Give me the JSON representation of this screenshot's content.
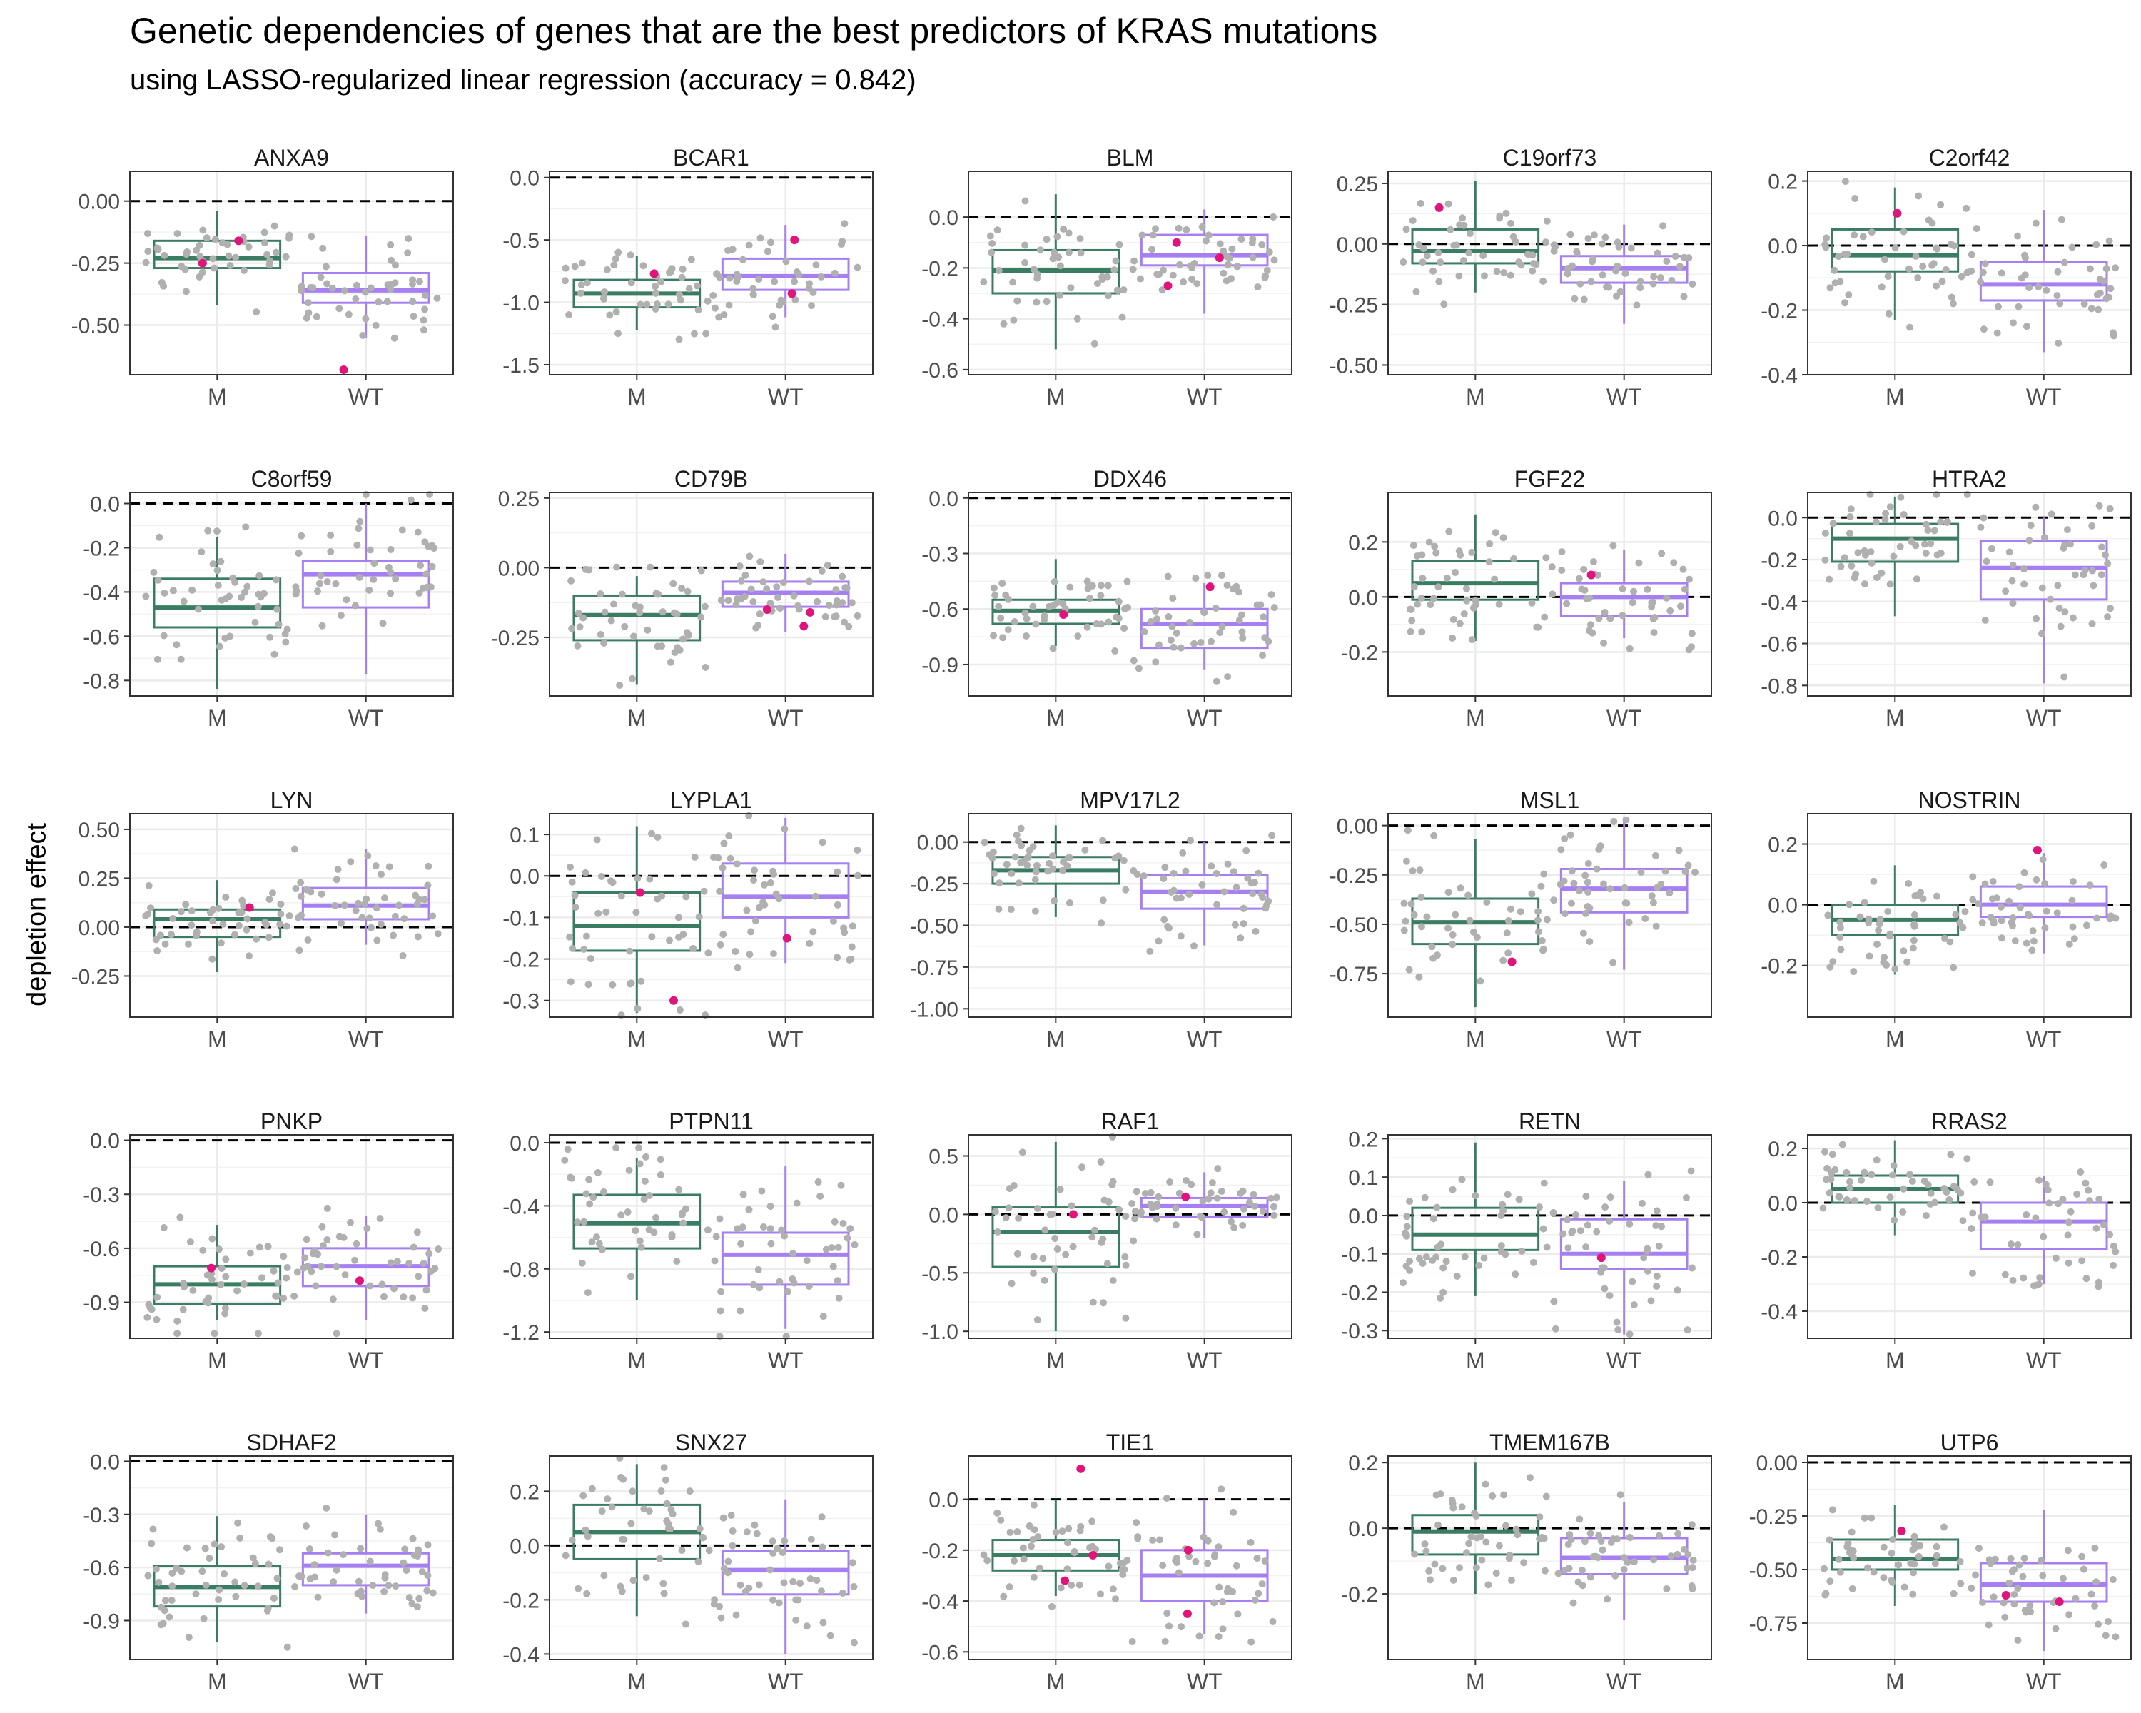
{
  "title": "Genetic dependencies of genes that are the best predictors of KRAS mutations",
  "subtitle": "using LASSO-regularized linear regression (accuracy = 0.842)",
  "ylabel": "depletion effect",
  "colors": {
    "M": "#3a7d63",
    "WT": "#a67ff2",
    "point": "#b0b0b0",
    "highlight": "#e0147a"
  },
  "chart_data": {
    "type": "boxplot",
    "categories": [
      "M",
      "WT"
    ],
    "reference_line": 0,
    "grid": true,
    "panels": [
      {
        "gene": "ANXA9",
        "ylim": [
          -0.7,
          0.12
        ],
        "ticks": [
          0.0,
          -0.25,
          -0.5
        ],
        "tick_labels": [
          "0.00",
          "-0.25",
          "-0.50"
        ],
        "M": {
          "min": -0.42,
          "q1": -0.27,
          "median": -0.23,
          "q3": -0.16,
          "max": -0.04
        },
        "WT": {
          "min": -0.55,
          "q1": -0.41,
          "median": -0.36,
          "q3": -0.29,
          "max": -0.14
        },
        "highlights": [
          {
            "group": "M",
            "y": -0.25
          },
          {
            "group": "M",
            "y": -0.16
          },
          {
            "group": "WT",
            "y": -0.68
          }
        ]
      },
      {
        "gene": "BCAR1",
        "ylim": [
          -1.58,
          0.05
        ],
        "ticks": [
          0.0,
          -0.5,
          -1.0,
          -1.5
        ],
        "tick_labels": [
          "0.0",
          "-0.5",
          "-1.0",
          "-1.5"
        ],
        "M": {
          "min": -1.22,
          "q1": -1.04,
          "median": -0.93,
          "q3": -0.82,
          "max": -0.63
        },
        "WT": {
          "min": -1.12,
          "q1": -0.9,
          "median": -0.79,
          "q3": -0.65,
          "max": -0.38
        },
        "highlights": [
          {
            "group": "M",
            "y": -0.77
          },
          {
            "group": "WT",
            "y": -0.5
          },
          {
            "group": "WT",
            "y": -0.93
          }
        ]
      },
      {
        "gene": "BLM",
        "ylim": [
          -0.62,
          0.18
        ],
        "ticks": [
          0.0,
          -0.2,
          -0.4,
          -0.6
        ],
        "tick_labels": [
          "0.0",
          "-0.2",
          "-0.4",
          "-0.6"
        ],
        "M": {
          "min": -0.52,
          "q1": -0.3,
          "median": -0.21,
          "q3": -0.13,
          "max": 0.09
        },
        "WT": {
          "min": -0.38,
          "q1": -0.19,
          "median": -0.15,
          "q3": -0.07,
          "max": 0.03
        },
        "highlights": [
          {
            "group": "WT",
            "y": -0.16
          },
          {
            "group": "WT",
            "y": -0.27
          },
          {
            "group": "WT",
            "y": -0.1
          }
        ]
      },
      {
        "gene": "C19orf73",
        "ylim": [
          -0.54,
          0.3
        ],
        "ticks": [
          0.25,
          0.0,
          -0.25,
          -0.5
        ],
        "tick_labels": [
          "0.25",
          "0.00",
          "-0.25",
          "-0.50"
        ],
        "M": {
          "min": -0.2,
          "q1": -0.08,
          "median": -0.03,
          "q3": 0.06,
          "max": 0.26
        },
        "WT": {
          "min": -0.33,
          "q1": -0.16,
          "median": -0.1,
          "q3": -0.05,
          "max": 0.08
        },
        "highlights": [
          {
            "group": "M",
            "y": 0.15
          }
        ]
      },
      {
        "gene": "C2orf42",
        "ylim": [
          -0.4,
          0.23
        ],
        "ticks": [
          0.2,
          0.0,
          -0.2,
          -0.4
        ],
        "tick_labels": [
          "0.2",
          "0.0",
          "-0.2",
          "-0.4"
        ],
        "M": {
          "min": -0.23,
          "q1": -0.08,
          "median": -0.03,
          "q3": 0.05,
          "max": 0.18
        },
        "WT": {
          "min": -0.33,
          "q1": -0.17,
          "median": -0.12,
          "q3": -0.05,
          "max": 0.11
        },
        "highlights": [
          {
            "group": "M",
            "y": 0.1
          }
        ]
      },
      {
        "gene": "C8orf59",
        "ylim": [
          -0.87,
          0.05
        ],
        "ticks": [
          0.0,
          -0.2,
          -0.4,
          -0.6,
          -0.8
        ],
        "tick_labels": [
          "0.0",
          "-0.2",
          "-0.4",
          "-0.6",
          "-0.8"
        ],
        "M": {
          "min": -0.84,
          "q1": -0.56,
          "median": -0.47,
          "q3": -0.34,
          "max": -0.15
        },
        "WT": {
          "min": -0.77,
          "q1": -0.47,
          "median": -0.32,
          "q3": -0.26,
          "max": 0.0
        },
        "highlights": []
      },
      {
        "gene": "CD79B",
        "ylim": [
          -0.46,
          0.27
        ],
        "ticks": [
          0.25,
          0.0,
          -0.25
        ],
        "tick_labels": [
          "0.25",
          "0.00",
          "-0.25"
        ],
        "M": {
          "min": -0.42,
          "q1": -0.26,
          "median": -0.17,
          "q3": -0.1,
          "max": -0.03
        },
        "WT": {
          "min": -0.23,
          "q1": -0.14,
          "median": -0.09,
          "q3": -0.05,
          "max": 0.05
        },
        "highlights": [
          {
            "group": "WT",
            "y": -0.15
          },
          {
            "group": "WT",
            "y": -0.21
          },
          {
            "group": "WT",
            "y": -0.16
          }
        ]
      },
      {
        "gene": "DDX46",
        "ylim": [
          -1.07,
          0.03
        ],
        "ticks": [
          0.0,
          -0.3,
          -0.6,
          -0.9
        ],
        "tick_labels": [
          "0.0",
          "-0.3",
          "-0.6",
          "-0.9"
        ],
        "M": {
          "min": -0.8,
          "q1": -0.68,
          "median": -0.61,
          "q3": -0.55,
          "max": -0.33
        },
        "WT": {
          "min": -0.93,
          "q1": -0.81,
          "median": -0.68,
          "q3": -0.6,
          "max": -0.46
        },
        "highlights": [
          {
            "group": "M",
            "y": -0.63
          },
          {
            "group": "WT",
            "y": -0.48
          }
        ]
      },
      {
        "gene": "FGF22",
        "ylim": [
          -0.36,
          0.38
        ],
        "ticks": [
          0.2,
          0.0,
          -0.2
        ],
        "tick_labels": [
          "0.2",
          "0.0",
          "-0.2"
        ],
        "M": {
          "min": -0.16,
          "q1": -0.01,
          "median": 0.05,
          "q3": 0.13,
          "max": 0.3
        },
        "WT": {
          "min": -0.15,
          "q1": -0.07,
          "median": 0.0,
          "q3": 0.05,
          "max": 0.17
        },
        "highlights": [
          {
            "group": "WT",
            "y": 0.08
          }
        ]
      },
      {
        "gene": "HTRA2",
        "ylim": [
          -0.85,
          0.12
        ],
        "ticks": [
          0.0,
          -0.2,
          -0.4,
          -0.6,
          -0.8
        ],
        "tick_labels": [
          "0.0",
          "-0.2",
          "-0.4",
          "-0.6",
          "-0.8"
        ],
        "M": {
          "min": -0.47,
          "q1": -0.21,
          "median": -0.1,
          "q3": -0.03,
          "max": 0.1
        },
        "WT": {
          "min": -0.79,
          "q1": -0.39,
          "median": -0.24,
          "q3": -0.11,
          "max": 0.0
        },
        "highlights": []
      },
      {
        "gene": "LYN",
        "ylim": [
          -0.46,
          0.58
        ],
        "ticks": [
          0.5,
          0.25,
          0.0,
          -0.25
        ],
        "tick_labels": [
          "0.50",
          "0.25",
          "0.00",
          "-0.25"
        ],
        "M": {
          "min": -0.23,
          "q1": -0.05,
          "median": 0.04,
          "q3": 0.09,
          "max": 0.24
        },
        "WT": {
          "min": -0.09,
          "q1": 0.04,
          "median": 0.11,
          "q3": 0.2,
          "max": 0.4
        },
        "highlights": [
          {
            "group": "M",
            "y": 0.1
          }
        ]
      },
      {
        "gene": "LYPLA1",
        "ylim": [
          -0.34,
          0.15
        ],
        "ticks": [
          0.1,
          0.0,
          -0.1,
          -0.2,
          -0.3
        ],
        "tick_labels": [
          "0.1",
          "0.0",
          "-0.1",
          "-0.2",
          "-0.3"
        ],
        "M": {
          "min": -0.33,
          "q1": -0.18,
          "median": -0.12,
          "q3": -0.04,
          "max": 0.12
        },
        "WT": {
          "min": -0.21,
          "q1": -0.1,
          "median": -0.05,
          "q3": 0.03,
          "max": 0.14
        },
        "highlights": [
          {
            "group": "M",
            "y": -0.04
          },
          {
            "group": "M",
            "y": -0.3
          },
          {
            "group": "WT",
            "y": -0.15
          }
        ]
      },
      {
        "gene": "MPV17L2",
        "ylim": [
          -1.05,
          0.17
        ],
        "ticks": [
          0.0,
          -0.25,
          -0.5,
          -0.75,
          -1.0
        ],
        "tick_labels": [
          "0.00",
          "-0.25",
          "-0.50",
          "-0.75",
          "-1.00"
        ],
        "M": {
          "min": -0.45,
          "q1": -0.25,
          "median": -0.17,
          "q3": -0.09,
          "max": 0.1
        },
        "WT": {
          "min": -0.62,
          "q1": -0.4,
          "median": -0.3,
          "q3": -0.2,
          "max": 0.0
        },
        "highlights": []
      },
      {
        "gene": "MSL1",
        "ylim": [
          -0.97,
          0.06
        ],
        "ticks": [
          0.0,
          -0.25,
          -0.5,
          -0.75
        ],
        "tick_labels": [
          "0.00",
          "-0.25",
          "-0.50",
          "-0.75"
        ],
        "M": {
          "min": -0.92,
          "q1": -0.6,
          "median": -0.49,
          "q3": -0.37,
          "max": -0.07
        },
        "WT": {
          "min": -0.73,
          "q1": -0.44,
          "median": -0.32,
          "q3": -0.22,
          "max": 0.04
        },
        "highlights": [
          {
            "group": "M",
            "y": -0.69
          }
        ]
      },
      {
        "gene": "NOSTRIN",
        "ylim": [
          -0.37,
          0.3
        ],
        "ticks": [
          0.2,
          0.0,
          -0.2
        ],
        "tick_labels": [
          "0.2",
          "0.0",
          "-0.2"
        ],
        "M": {
          "min": -0.23,
          "q1": -0.1,
          "median": -0.05,
          "q3": 0.0,
          "max": 0.13
        },
        "WT": {
          "min": -0.16,
          "q1": -0.04,
          "median": 0.0,
          "q3": 0.06,
          "max": 0.17
        },
        "highlights": [
          {
            "group": "WT",
            "y": 0.18
          }
        ]
      },
      {
        "gene": "PNKP",
        "ylim": [
          -1.1,
          0.03
        ],
        "ticks": [
          0.0,
          -0.3,
          -0.6,
          -0.9
        ],
        "tick_labels": [
          "0.0",
          "-0.3",
          "-0.6",
          "-0.9"
        ],
        "M": {
          "min": -1.0,
          "q1": -0.91,
          "median": -0.8,
          "q3": -0.7,
          "max": -0.47
        },
        "WT": {
          "min": -1.0,
          "q1": -0.81,
          "median": -0.7,
          "q3": -0.6,
          "max": -0.42
        },
        "highlights": [
          {
            "group": "M",
            "y": -0.71
          },
          {
            "group": "WT",
            "y": -0.78
          }
        ]
      },
      {
        "gene": "PTPN11",
        "ylim": [
          -1.24,
          0.05
        ],
        "ticks": [
          0.0,
          -0.4,
          -0.8,
          -1.2
        ],
        "tick_labels": [
          "0.0",
          "-0.4",
          "-0.8",
          "-1.2"
        ],
        "M": {
          "min": -1.0,
          "q1": -0.67,
          "median": -0.51,
          "q3": -0.33,
          "max": -0.1
        },
        "WT": {
          "min": -1.18,
          "q1": -0.9,
          "median": -0.71,
          "q3": -0.57,
          "max": -0.15
        },
        "highlights": []
      },
      {
        "gene": "RAF1",
        "ylim": [
          -1.06,
          0.68
        ],
        "ticks": [
          0.5,
          0.0,
          -0.5,
          -1.0
        ],
        "tick_labels": [
          "0.5",
          "0.0",
          "-0.5",
          "-1.0"
        ],
        "M": {
          "min": -1.0,
          "q1": -0.45,
          "median": -0.15,
          "q3": 0.06,
          "max": 0.62
        },
        "WT": {
          "min": -0.2,
          "q1": -0.02,
          "median": 0.07,
          "q3": 0.14,
          "max": 0.36
        },
        "highlights": [
          {
            "group": "M",
            "y": 0.0
          },
          {
            "group": "WT",
            "y": 0.15
          }
        ]
      },
      {
        "gene": "RETN",
        "ylim": [
          -0.32,
          0.21
        ],
        "ticks": [
          0.2,
          0.1,
          0.0,
          -0.1,
          -0.2,
          -0.3
        ],
        "tick_labels": [
          "0.2",
          "0.1",
          "0.0",
          "-0.1",
          "-0.2",
          "-0.3"
        ],
        "M": {
          "min": -0.21,
          "q1": -0.09,
          "median": -0.05,
          "q3": 0.02,
          "max": 0.19
        },
        "WT": {
          "min": -0.31,
          "q1": -0.14,
          "median": -0.1,
          "q3": -0.01,
          "max": 0.09
        },
        "highlights": [
          {
            "group": "WT",
            "y": -0.11
          }
        ]
      },
      {
        "gene": "RRAS2",
        "ylim": [
          -0.5,
          0.25
        ],
        "ticks": [
          0.2,
          0.0,
          -0.2,
          -0.4
        ],
        "tick_labels": [
          "0.2",
          "0.0",
          "-0.2",
          "-0.4"
        ],
        "M": {
          "min": -0.12,
          "q1": 0.0,
          "median": 0.05,
          "q3": 0.1,
          "max": 0.23
        },
        "WT": {
          "min": -0.3,
          "q1": -0.17,
          "median": -0.07,
          "q3": 0.0,
          "max": 0.1
        },
        "highlights": []
      },
      {
        "gene": "SDHAF2",
        "ylim": [
          -1.12,
          0.03
        ],
        "ticks": [
          0.0,
          -0.3,
          -0.6,
          -0.9
        ],
        "tick_labels": [
          "0.0",
          "-0.3",
          "-0.6",
          "-0.9"
        ],
        "M": {
          "min": -1.02,
          "q1": -0.82,
          "median": -0.71,
          "q3": -0.59,
          "max": -0.31
        },
        "WT": {
          "min": -0.86,
          "q1": -0.7,
          "median": -0.59,
          "q3": -0.52,
          "max": -0.3
        },
        "highlights": []
      },
      {
        "gene": "SNX27",
        "ylim": [
          -0.42,
          0.33
        ],
        "ticks": [
          0.2,
          0.0,
          -0.2,
          -0.4
        ],
        "tick_labels": [
          "0.2",
          "0.0",
          "-0.2",
          "-0.4"
        ],
        "M": {
          "min": -0.26,
          "q1": -0.05,
          "median": 0.05,
          "q3": 0.15,
          "max": 0.3
        },
        "WT": {
          "min": -0.4,
          "q1": -0.18,
          "median": -0.09,
          "q3": -0.02,
          "max": 0.17
        },
        "highlights": []
      },
      {
        "gene": "TIE1",
        "ylim": [
          -0.63,
          0.17
        ],
        "ticks": [
          0.0,
          -0.2,
          -0.4,
          -0.6
        ],
        "tick_labels": [
          "0.0",
          "-0.2",
          "-0.4",
          "-0.6"
        ],
        "M": {
          "min": -0.38,
          "q1": -0.28,
          "median": -0.22,
          "q3": -0.16,
          "max": 0.0
        },
        "WT": {
          "min": -0.53,
          "q1": -0.4,
          "median": -0.3,
          "q3": -0.2,
          "max": 0.0
        },
        "highlights": [
          {
            "group": "M",
            "y": 0.12
          },
          {
            "group": "M",
            "y": -0.22
          },
          {
            "group": "M",
            "y": -0.32
          },
          {
            "group": "WT",
            "y": -0.2
          },
          {
            "group": "WT",
            "y": -0.45
          }
        ]
      },
      {
        "gene": "TMEM167B",
        "ylim": [
          -0.4,
          0.22
        ],
        "ticks": [
          0.2,
          0.0,
          -0.2
        ],
        "tick_labels": [
          "0.2",
          "0.0",
          "-0.2"
        ],
        "M": {
          "min": -0.2,
          "q1": -0.08,
          "median": -0.01,
          "q3": 0.04,
          "max": 0.2
        },
        "WT": {
          "min": -0.28,
          "q1": -0.14,
          "median": -0.09,
          "q3": -0.03,
          "max": 0.08
        },
        "highlights": []
      },
      {
        "gene": "UTP6",
        "ylim": [
          -0.92,
          0.03
        ],
        "ticks": [
          0.0,
          -0.25,
          -0.5,
          -0.75
        ],
        "tick_labels": [
          "0.00",
          "-0.25",
          "-0.50",
          "-0.75"
        ],
        "M": {
          "min": -0.67,
          "q1": -0.5,
          "median": -0.45,
          "q3": -0.36,
          "max": -0.2
        },
        "WT": {
          "min": -0.88,
          "q1": -0.65,
          "median": -0.57,
          "q3": -0.47,
          "max": -0.22
        },
        "highlights": [
          {
            "group": "M",
            "y": -0.32
          },
          {
            "group": "WT",
            "y": -0.62
          },
          {
            "group": "WT",
            "y": -0.65
          }
        ]
      }
    ]
  }
}
